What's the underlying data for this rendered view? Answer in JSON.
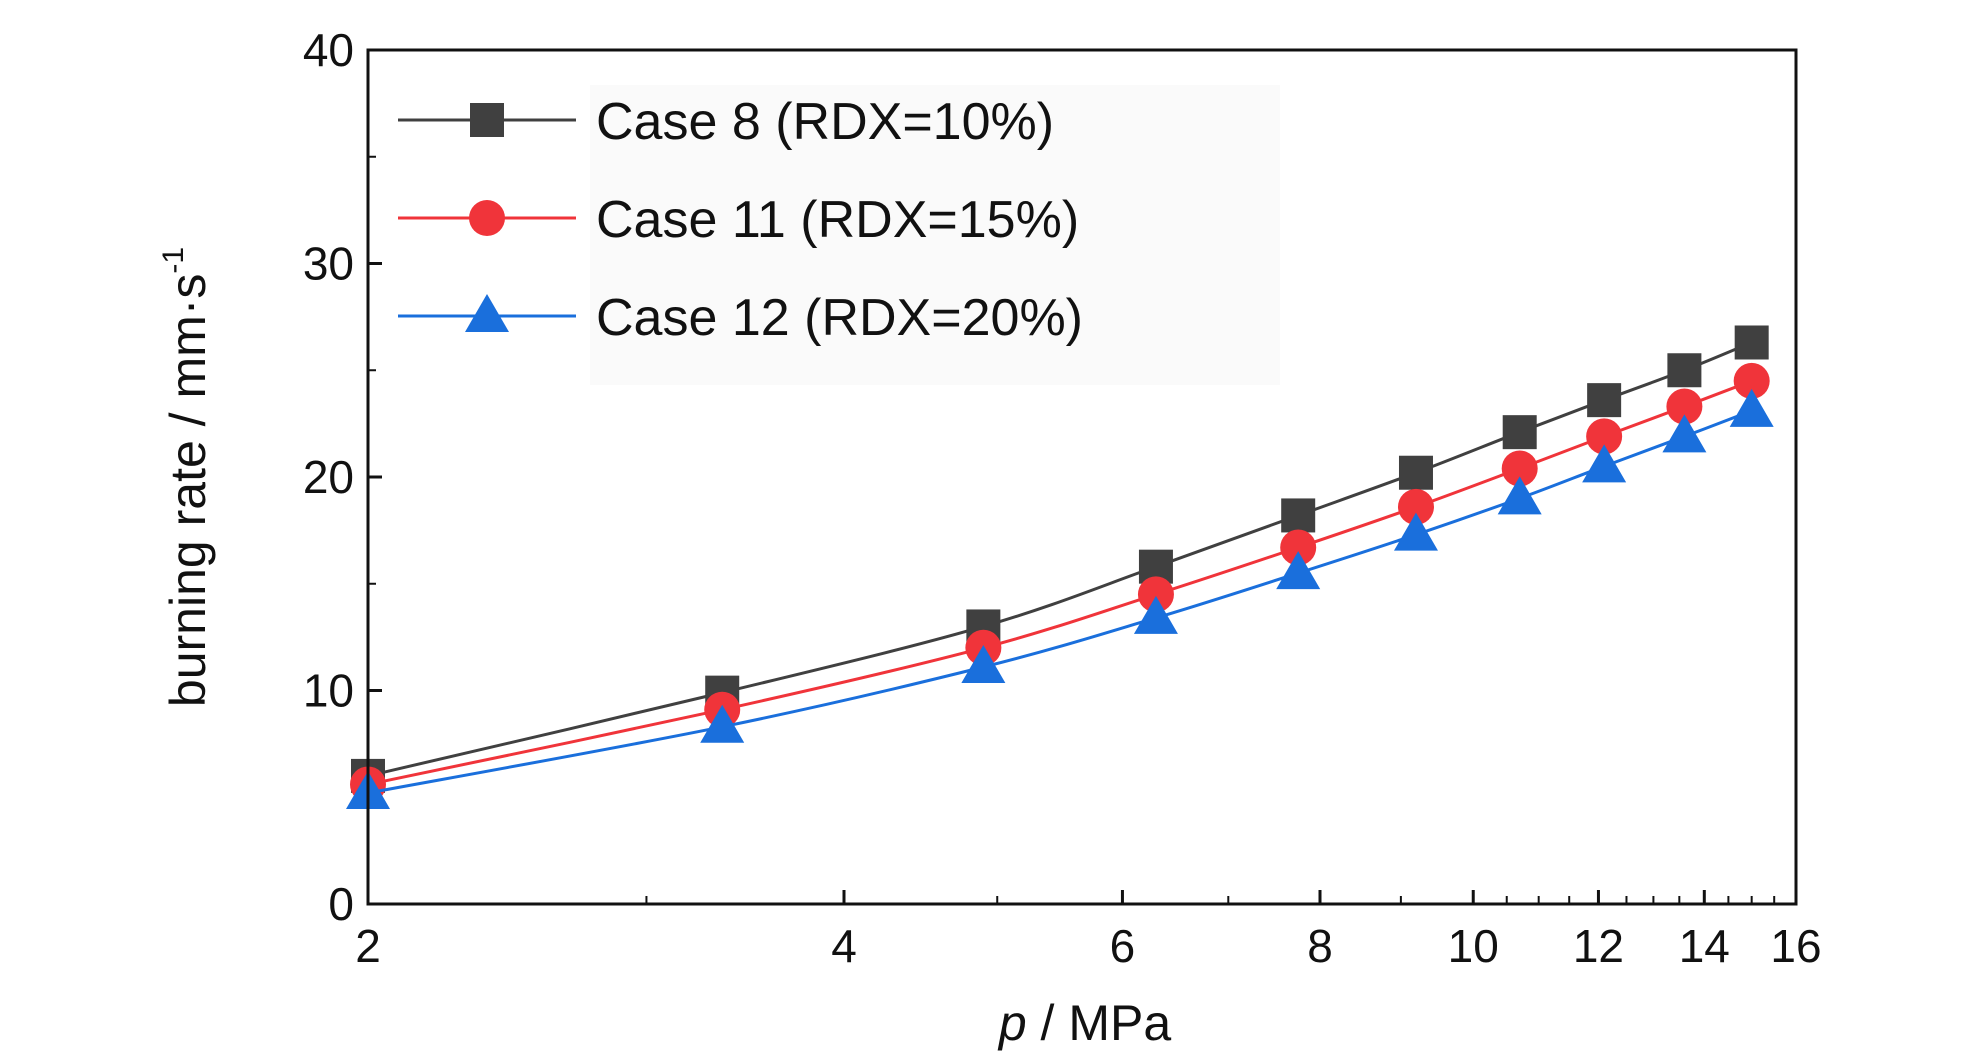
{
  "chart_data": {
    "type": "line",
    "xlabel_italic": "p",
    "xlabel_rest": " / MPa",
    "ylabel_main": "burning rate / mm·s",
    "ylabel_sup": "-1",
    "x_scale": "log",
    "xlim": [
      2,
      16
    ],
    "ylim": [
      0,
      40
    ],
    "x_ticks": [
      2,
      4,
      6,
      8,
      10,
      12,
      14,
      16
    ],
    "x_tick_labels": [
      "2",
      "4",
      "6",
      "8",
      "10",
      "12",
      "14",
      "16"
    ],
    "y_ticks": [
      0,
      10,
      20,
      30,
      40
    ],
    "y_tick_labels": [
      "0",
      "10",
      "20",
      "30",
      "40"
    ],
    "grid": false,
    "legend_position": "top-left",
    "x": [
      2.0,
      3.35,
      4.9,
      6.3,
      7.75,
      9.2,
      10.7,
      12.1,
      13.6,
      15.0
    ],
    "series": [
      {
        "name": "Case 8 (RDX=10%)",
        "color": "#404040",
        "marker": "square",
        "values": [
          6.0,
          9.9,
          13.0,
          15.8,
          18.2,
          20.2,
          22.1,
          23.6,
          25.0,
          26.3
        ]
      },
      {
        "name": "Case 11 (RDX=15%)",
        "color": "#f0343a",
        "marker": "circle",
        "values": [
          5.6,
          9.1,
          12.0,
          14.5,
          16.7,
          18.6,
          20.4,
          21.9,
          23.3,
          24.5
        ]
      },
      {
        "name": "Case 12 (RDX=20%)",
        "color": "#1a6fdc",
        "marker": "triangle",
        "values": [
          5.2,
          8.3,
          11.1,
          13.4,
          15.5,
          17.3,
          19.0,
          20.5,
          21.9,
          23.1
        ]
      }
    ]
  }
}
